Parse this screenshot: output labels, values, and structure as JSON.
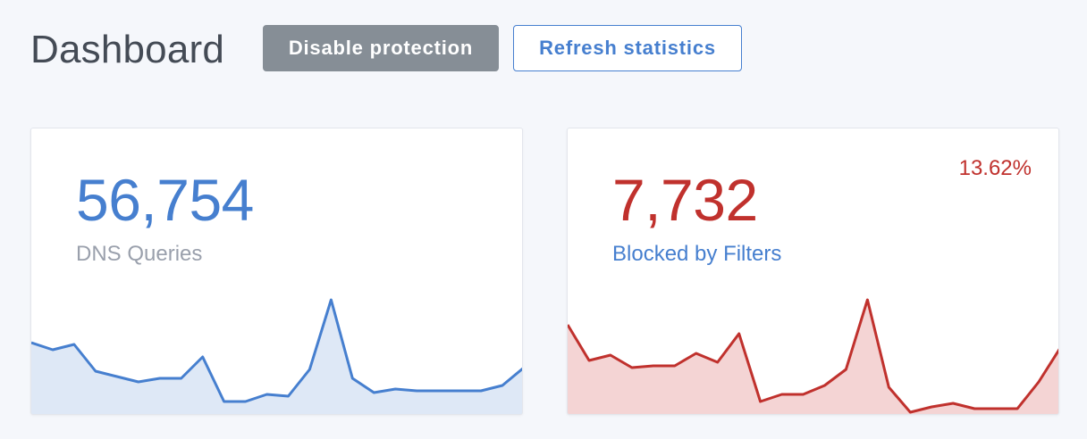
{
  "header": {
    "title": "Dashboard",
    "disable_label": "Disable protection",
    "refresh_label": "Refresh statistics"
  },
  "colors": {
    "primary": "#467fcf",
    "danger": "#c0312d",
    "secondary": "#868e96",
    "background": "#f5f7fb"
  },
  "cards": {
    "dns_queries": {
      "value": "56,754",
      "label": "DNS Queries"
    },
    "blocked": {
      "value": "7,732",
      "label": "Blocked by Filters",
      "percent": "13.62%"
    }
  },
  "chart_data": [
    {
      "type": "area",
      "x": [
        1,
        2,
        3,
        4,
        5,
        6,
        7,
        8,
        9,
        10,
        11,
        12,
        13,
        14,
        15,
        16,
        17,
        18,
        19,
        20,
        21,
        22,
        23,
        24
      ],
      "values": [
        80,
        72,
        78,
        48,
        42,
        36,
        40,
        40,
        64,
        14,
        14,
        22,
        20,
        50,
        128,
        40,
        24,
        28,
        26,
        26,
        26,
        26,
        32,
        52
      ],
      "ylim": [
        0,
        150
      ]
    },
    {
      "type": "area",
      "x": [
        1,
        2,
        3,
        4,
        5,
        6,
        7,
        8,
        9,
        10,
        11,
        12,
        13,
        14,
        15,
        16,
        17,
        18,
        19,
        20,
        21,
        22,
        23,
        24
      ],
      "values": [
        100,
        60,
        66,
        52,
        54,
        54,
        68,
        58,
        90,
        14,
        22,
        22,
        32,
        50,
        128,
        30,
        2,
        8,
        12,
        6,
        6,
        6,
        36,
        74
      ],
      "ylim": [
        0,
        150
      ]
    }
  ]
}
